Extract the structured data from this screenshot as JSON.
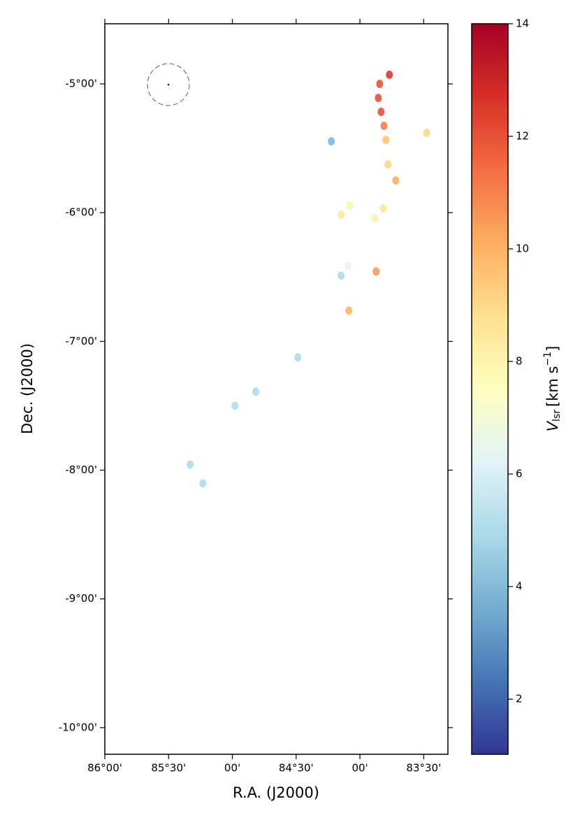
{
  "chart_data": {
    "type": "scatter",
    "x_label": "R.A. (J2000)",
    "y_label": "Dec. (J2000)",
    "xlim": [
      86.0,
      83.31
    ],
    "ylim": [
      -10.207,
      -4.533
    ],
    "xticks": [
      {
        "value": 86.0,
        "label": "86°00'"
      },
      {
        "value": 85.5,
        "label": "85°30'"
      },
      {
        "value": 85.0,
        "label": "00'"
      },
      {
        "value": 84.5,
        "label": "84°30'"
      },
      {
        "value": 84.0,
        "label": "00'"
      },
      {
        "value": 83.5,
        "label": "83°30'"
      }
    ],
    "yticks": [
      {
        "value": -5,
        "label": "-5°00'"
      },
      {
        "value": -6,
        "label": "-6°00'"
      },
      {
        "value": -7,
        "label": "-7°00'"
      },
      {
        "value": -8,
        "label": "-8°00'"
      },
      {
        "value": -9,
        "label": "-9°00'"
      },
      {
        "value": -10,
        "label": "-10°00'"
      }
    ],
    "x": [
      83.769,
      83.845,
      83.856,
      83.834,
      83.812,
      83.796,
      83.78,
      83.719,
      83.478,
      83.818,
      84.147,
      84.092,
      84.087,
      83.873,
      84.487,
      84.98,
      84.816,
      85.232,
      85.331,
      84.224,
      84.081,
      83.883,
      84.147
    ],
    "y": [
      -4.929,
      -5.0,
      -5.109,
      -5.217,
      -5.326,
      -5.435,
      -5.625,
      -5.75,
      -5.38,
      -5.967,
      -6.016,
      -6.413,
      -6.761,
      -6.457,
      -7.125,
      -7.5,
      -7.391,
      -8.103,
      -7.957,
      -5.446,
      -5.946,
      -6.043,
      -6.489
    ],
    "values": [
      12.5,
      12,
      12,
      12,
      11,
      9.5,
      9,
      10,
      9,
      8.5,
      8.5,
      6.5,
      10,
      10.5,
      5,
      5,
      5,
      5,
      5,
      4,
      8,
      8,
      5
    ],
    "colormap": [
      "#313695",
      "#4575b4",
      "#74add1",
      "#abd9e9",
      "#e0f3f8",
      "#ffffbf",
      "#fee090",
      "#fdae61",
      "#f46d43",
      "#d73027",
      "#a50026"
    ],
    "colorbar": {
      "lim": [
        1.02,
        14
      ],
      "ticks": [
        2,
        4,
        6,
        8,
        10,
        12,
        14
      ],
      "label": {
        "symbol": "V",
        "subscript": "lsr",
        "unit": "[km s",
        "exponent": "−1",
        "close": "]"
      }
    }
  }
}
